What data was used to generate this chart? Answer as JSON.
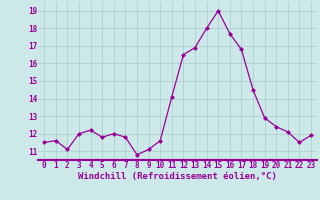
{
  "x": [
    0,
    1,
    2,
    3,
    4,
    5,
    6,
    7,
    8,
    9,
    10,
    11,
    12,
    13,
    14,
    15,
    16,
    17,
    18,
    19,
    20,
    21,
    22,
    23
  ],
  "y": [
    11.5,
    11.6,
    11.1,
    12.0,
    12.2,
    11.8,
    12.0,
    11.8,
    10.8,
    11.1,
    11.6,
    14.1,
    16.5,
    16.9,
    18.0,
    19.0,
    17.7,
    16.8,
    14.5,
    12.9,
    12.4,
    12.1,
    11.5,
    11.9
  ],
  "line_color": "#990099",
  "marker": "D",
  "marker_size": 2.0,
  "bg_color": "#cce8e8",
  "grid_color": "#aacccc",
  "xlabel": "Windchill (Refroidissement éolien,°C)",
  "xlabel_color": "#990099",
  "tick_color": "#990099",
  "ylim": [
    10.5,
    19.5
  ],
  "yticks": [
    11,
    12,
    13,
    14,
    15,
    16,
    17,
    18,
    19
  ],
  "xticks": [
    0,
    1,
    2,
    3,
    4,
    5,
    6,
    7,
    8,
    9,
    10,
    11,
    12,
    13,
    14,
    15,
    16,
    17,
    18,
    19,
    20,
    21,
    22,
    23
  ],
  "tick_fontsize": 5.5,
  "xlabel_fontsize": 6.5,
  "label_fontweight": "bold"
}
